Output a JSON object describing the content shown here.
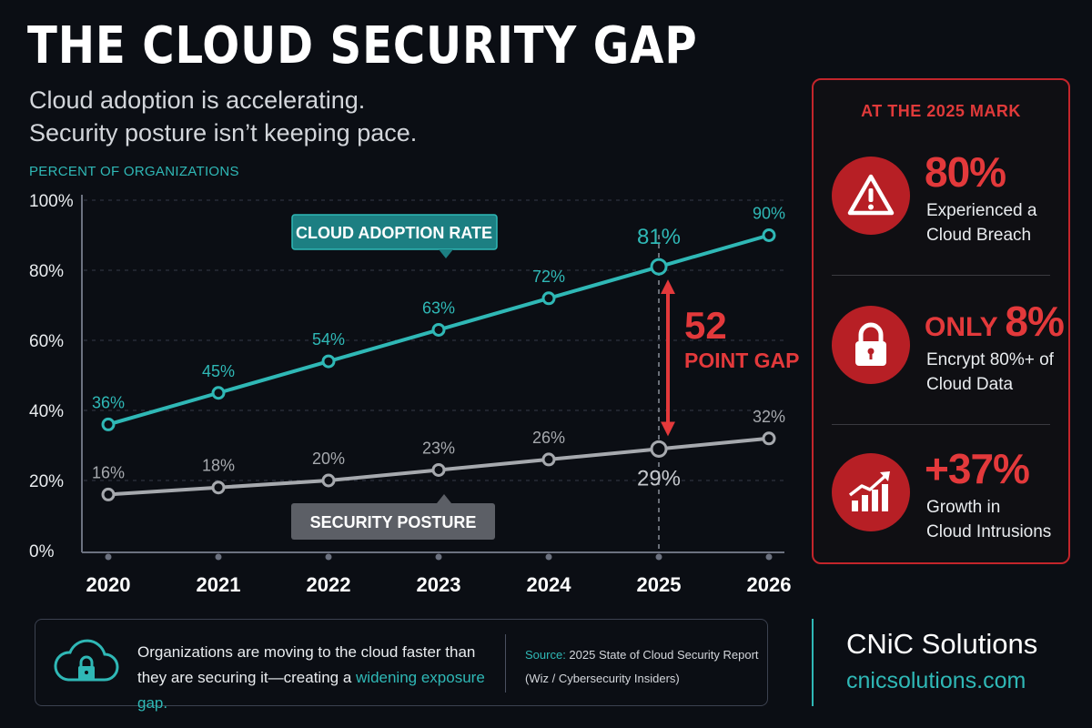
{
  "title": "THE CLOUD SECURITY GAP",
  "subtitle": {
    "line1": "Cloud adoption is accelerating.",
    "line2": "Security posture isn’t keeping pace."
  },
  "chart_data": {
    "type": "line",
    "ylabel": "PERCENT OF ORGANIZATIONS",
    "x": [
      "2020",
      "2021",
      "2022",
      "2023",
      "2024",
      "2025",
      "2026"
    ],
    "ylim": [
      0,
      100
    ],
    "yticks": [
      0,
      20,
      40,
      60,
      80,
      100
    ],
    "ytick_labels": [
      "0%",
      "20%",
      "40%",
      "60%",
      "80%",
      "100%"
    ],
    "grid": true,
    "series": [
      {
        "name": "CLOUD ADOPTION RATE",
        "color": "#2fb8b6",
        "values": [
          36,
          45,
          54,
          63,
          72,
          81,
          90
        ],
        "labels": [
          "36%",
          "45%",
          "54%",
          "63%",
          "72%",
          "81%",
          "90%"
        ]
      },
      {
        "name": "SECURITY POSTURE",
        "color": "#a6a9ae",
        "values": [
          16,
          18,
          20,
          23,
          26,
          29,
          32
        ],
        "labels": [
          "16%",
          "18%",
          "20%",
          "23%",
          "26%",
          "29%",
          "32%"
        ]
      }
    ],
    "highlight_x": "2025",
    "annotation": {
      "value": "52",
      "label": "POINT GAP",
      "color": "#e3393b"
    }
  },
  "panel": {
    "title": "AT THE 2025 MARK",
    "stats": [
      {
        "icon": "warning-icon",
        "prefix": "",
        "value": "80%",
        "line1": "Experienced a",
        "line2": "Cloud Breach"
      },
      {
        "icon": "lock-icon",
        "prefix": "ONLY ",
        "value": "8%",
        "line1": "Encrypt 80%+ of",
        "line2": "Cloud Data"
      },
      {
        "icon": "growth-chart-icon",
        "prefix": "",
        "value": "+37%",
        "line1": "Growth in",
        "line2": "Cloud Intrusions"
      }
    ]
  },
  "footer": {
    "text_main": "Organizations are moving to the cloud faster than they are securing it—creating a ",
    "text_highlight": "widening exposure gap.",
    "source_label": "Source:",
    "source_line1": " 2025 State of Cloud Security Report",
    "source_line2": "(Wiz / Cybersecurity Insiders)"
  },
  "brand": {
    "name": "CNiC Solutions",
    "url": "cnicsolutions.com"
  }
}
